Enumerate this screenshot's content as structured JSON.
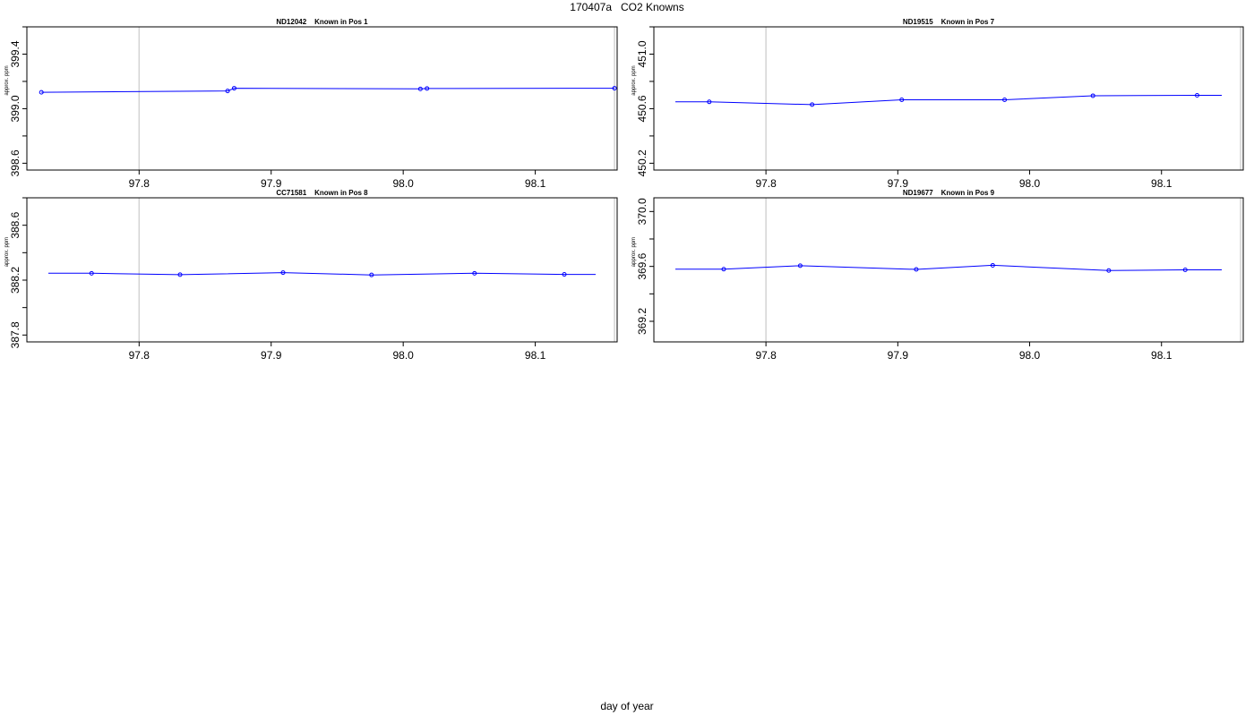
{
  "title": "170407a   CO2 Knowns",
  "xlabel": "day of year",
  "chart_data": [
    {
      "type": "line",
      "title": "ND12042    Known in Pos 1",
      "ylabel": "approx. ppm",
      "xlim": [
        97.715,
        98.162
      ],
      "ylim": [
        398.55,
        399.6
      ],
      "xticks": [
        "97.8",
        "97.9",
        "98.0",
        "98.1"
      ],
      "yticks": [
        "398.6",
        "399.0",
        "399.4"
      ],
      "vlines": [
        97.8,
        98.16
      ],
      "series": [
        {
          "color": "#0000ff",
          "x": [
            97.726,
            97.867,
            97.872,
            98.013,
            98.018,
            98.16
          ],
          "y": [
            399.12,
            399.13,
            399.15,
            399.145,
            399.148,
            399.15
          ]
        }
      ]
    },
    {
      "type": "line",
      "title": "ND19515    Known in Pos 7",
      "ylabel": "approx. ppm",
      "xlim": [
        97.715,
        98.162
      ],
      "ylim": [
        450.15,
        451.2
      ],
      "xticks": [
        "97.8",
        "97.9",
        "98.0",
        "98.1"
      ],
      "yticks": [
        "450.2",
        "450.6",
        "451.0"
      ],
      "vlines": [
        97.8,
        98.16
      ],
      "series": [
        {
          "color": "#0000ff",
          "x": [
            97.757,
            97.835,
            97.903,
            97.981,
            98.048,
            98.127
          ],
          "y": [
            450.65,
            450.63,
            450.665,
            450.665,
            450.695,
            450.698
          ]
        }
      ]
    },
    {
      "type": "line",
      "title": "CC71581    Known in Pos 8",
      "ylabel": "approx. ppm",
      "xlim": [
        97.715,
        98.162
      ],
      "ylim": [
        387.75,
        388.8
      ],
      "xticks": [
        "97.8",
        "97.9",
        "98.0",
        "98.1"
      ],
      "yticks": [
        "387.8",
        "388.2",
        "388.6"
      ],
      "vlines": [
        97.8,
        98.16
      ],
      "series": [
        {
          "color": "#0000ff",
          "x": [
            97.764,
            97.831,
            97.909,
            97.976,
            98.054,
            98.122
          ],
          "y": [
            388.25,
            388.24,
            388.255,
            388.238,
            388.25,
            388.242
          ]
        }
      ]
    },
    {
      "type": "line",
      "title": "ND19677    Known in Pos 9",
      "ylabel": "approx. ppm",
      "xlim": [
        97.715,
        98.162
      ],
      "ylim": [
        369.05,
        370.1
      ],
      "xticks": [
        "97.8",
        "97.9",
        "98.0",
        "98.1"
      ],
      "yticks": [
        "369.2",
        "369.6",
        "370.0"
      ],
      "vlines": [
        97.8,
        98.16
      ],
      "series": [
        {
          "color": "#0000ff",
          "x": [
            97.768,
            97.826,
            97.914,
            97.972,
            98.06,
            98.118
          ],
          "y": [
            369.58,
            369.605,
            369.578,
            369.608,
            369.57,
            369.575
          ]
        }
      ]
    }
  ]
}
